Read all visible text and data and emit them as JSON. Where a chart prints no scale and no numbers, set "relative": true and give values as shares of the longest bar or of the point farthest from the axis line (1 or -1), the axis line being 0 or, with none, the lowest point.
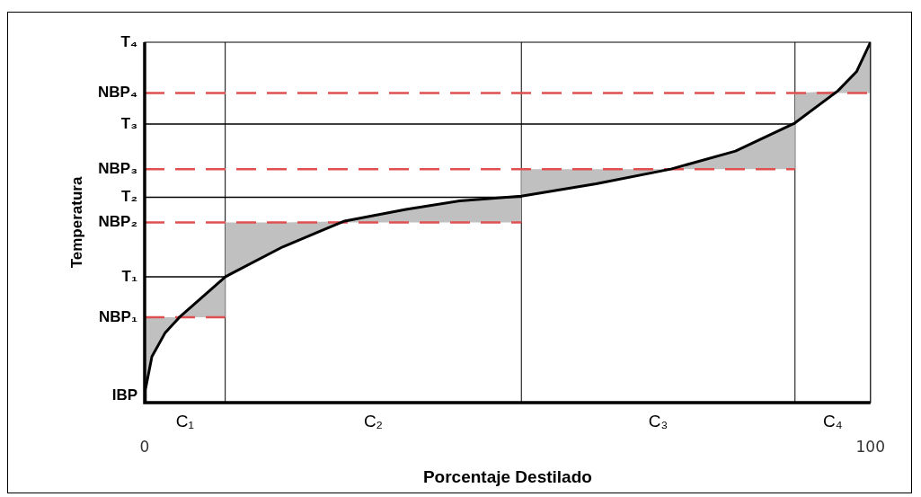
{
  "chart_data": {
    "type": "line",
    "relative": true,
    "xlabel": "Porcentaje Destilado",
    "ylabel": "Temperatura",
    "xlim": [
      0,
      100
    ],
    "xticks": [
      0,
      100
    ],
    "legend": false,
    "series": [
      {
        "type": "line",
        "color": "#000000",
        "x": [
          0,
          0.1,
          1.0,
          2.8,
          4.8,
          11.1,
          11.1,
          19.0,
          27.4,
          36.0,
          43.4,
          51.9,
          51.9,
          62.2,
          72.5,
          81.4,
          89.6,
          89.6,
          95.5,
          98.1,
          100
        ],
        "values": [
          0,
          0.036,
          0.128,
          0.193,
          0.237,
          0.349,
          0.349,
          0.432,
          0.503,
          0.536,
          0.56,
          0.573,
          0.573,
          0.607,
          0.648,
          0.698,
          0.776,
          0.776,
          0.865,
          0.919,
          1
        ],
        "lower": [
          0,
          0.036,
          0.128,
          0.193,
          0.237,
          0.237,
          0.349,
          0.432,
          0.5,
          0.5,
          0.5,
          0.5,
          0.573,
          0.607,
          0.648,
          0.648,
          0.648,
          0.776,
          0.859,
          0.859,
          0.859
        ],
        "upper": [
          0.237,
          0.237,
          0.237,
          0.237,
          0.237,
          0.349,
          0.5,
          0.5,
          0.503,
          0.536,
          0.56,
          0.573,
          0.648,
          0.648,
          0.648,
          0.698,
          0.776,
          0.859,
          0.865,
          0.919,
          1
        ]
      },
      {
        "type": "line",
        "name": "NBP₁",
        "color": "#e05050",
        "line_style": "dashed",
        "x": [
          0,
          11.1
        ],
        "values": [
          0.237,
          0.237
        ]
      },
      {
        "type": "line",
        "name": "NBP₂",
        "color": "#e05050",
        "line_style": "dashed",
        "x": [
          0,
          51.9
        ],
        "values": [
          0.5,
          0.5
        ]
      },
      {
        "type": "line",
        "name": "NBP₃",
        "color": "#e05050",
        "line_style": "dashed",
        "x": [
          0,
          89.6
        ],
        "values": [
          0.648,
          0.648
        ]
      },
      {
        "type": "line",
        "name": "NBP₄",
        "color": "#e05050",
        "line_style": "dashed",
        "x": [
          0,
          100
        ],
        "values": [
          0.859,
          0.859
        ]
      },
      {
        "type": "line",
        "name": "T₁",
        "color": "#000000",
        "x": [
          0,
          11.1
        ],
        "values": [
          0.349,
          0.349
        ]
      },
      {
        "type": "line",
        "name": "T₂",
        "color": "#000000",
        "x": [
          0,
          51.9
        ],
        "values": [
          0.57,
          0.57
        ]
      },
      {
        "type": "line",
        "name": "T₃",
        "color": "#000000",
        "x": [
          0,
          89.6
        ],
        "values": [
          0.773,
          0.773
        ]
      }
    ],
    "ref_lines": [
      {
        "axis": "x",
        "value": 11.1,
        "color": "#000000"
      },
      {
        "axis": "x",
        "value": 51.9,
        "color": "#000000"
      },
      {
        "axis": "x",
        "value": 89.6,
        "color": "#000000"
      }
    ],
    "annotations": [
      {
        "text": "IBP",
        "x": 0,
        "y": 0
      },
      "T₄",
      "C₁",
      "C₂",
      "C₃",
      "C₄"
    ]
  }
}
